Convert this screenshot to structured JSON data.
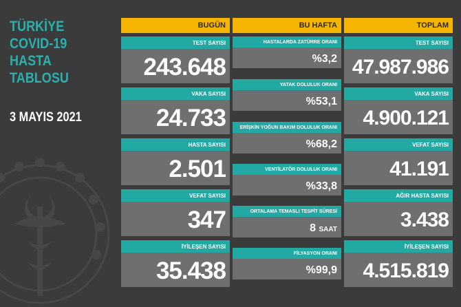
{
  "title_lines": [
    "TÜRKİYE",
    "COVID-19",
    "HASTA",
    "TABLOSU"
  ],
  "date": "3 MAYIS 2021",
  "columns": {
    "today": {
      "header": "BUGÜN",
      "cards": [
        {
          "label": "TEST SAYISI",
          "value": "243.648"
        },
        {
          "label": "VAKA SAYISI",
          "value": "24.733"
        },
        {
          "label": "HASTA SAYISI",
          "value": "2.501"
        },
        {
          "label": "VEFAT SAYISI",
          "value": "347"
        },
        {
          "label": "İYİLEŞEN SAYISI",
          "value": "35.438"
        }
      ]
    },
    "week": {
      "header": "BU HAFTA",
      "cards": [
        {
          "label": "HASTALARDA ZATÜRRE ORANI",
          "value": "%3,2"
        },
        {
          "label": "YATAK DOLULUK ORANI",
          "value": "%53,1"
        },
        {
          "label": "ERİŞKİN YOĞUN BAKIM DOLULUK ORANI",
          "value": "%68,2"
        },
        {
          "label": "VENTİLATÖR DOLULUK ORANI",
          "value": "%33,8"
        },
        {
          "label": "ORTALAMA TEMASLI TESPİT SÜRESİ",
          "value": "8",
          "unit": "SAAT"
        },
        {
          "label": "FİLYASYON ORANI",
          "value": "%99,9"
        }
      ]
    },
    "total": {
      "header": "TOPLAM",
      "cards": [
        {
          "label": "TEST SAYISI",
          "value": "47.987.986"
        },
        {
          "label": "VAKA SAYISI",
          "value": "4.900.121"
        },
        {
          "label": "VEFAT SAYISI",
          "value": "41.191"
        },
        {
          "label": "AĞIR HASTA SAYISI",
          "value": "3.438"
        },
        {
          "label": "İYİLEŞEN SAYISI",
          "value": "4.515.819"
        }
      ]
    }
  },
  "colors": {
    "background": "#3b3b3b",
    "accent_teal": "#22a9a3",
    "header_yellow": "#f5b400",
    "card_gray": "#6f6f6f",
    "title_teal": "#2ab0ad"
  },
  "emblem_icon": "ministry-of-health-emblem"
}
